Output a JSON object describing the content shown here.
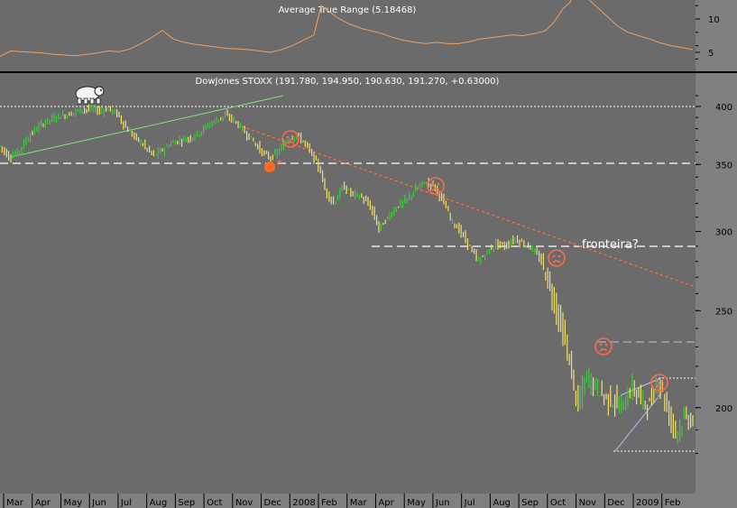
{
  "chart_data": [
    {
      "type": "line",
      "title": "Average True Range (5.18468)",
      "yticks": [
        5,
        10
      ],
      "series": [
        {
          "x": [
            0,
            12,
            24,
            36,
            48,
            60,
            72,
            84,
            96,
            108,
            120,
            132,
            144,
            156,
            168,
            180,
            192,
            204,
            216,
            228,
            240,
            252,
            264,
            276,
            288,
            300,
            312,
            324,
            336,
            348,
            356,
            364,
            376,
            388,
            400,
            412,
            424,
            436,
            448,
            460,
            472,
            484,
            496,
            508,
            520,
            532,
            544,
            556,
            568,
            580,
            592,
            604,
            614,
            624,
            632,
            640,
            648,
            660,
            672,
            684,
            696,
            708,
            720,
            732,
            744,
            756,
            768
          ],
          "y": [
            4.4,
            5.2,
            5.1,
            5.0,
            4.9,
            4.7,
            4.6,
            4.5,
            4.7,
            4.9,
            5.2,
            5.1,
            5.5,
            6.3,
            7.2,
            8.3,
            7.0,
            6.5,
            6.2,
            6.0,
            5.8,
            5.6,
            5.5,
            5.4,
            5.2,
            5.0,
            5.4,
            6.0,
            6.8,
            7.6,
            12.0,
            11.2,
            10.0,
            9.2,
            8.6,
            8.2,
            7.8,
            7.2,
            6.8,
            6.5,
            6.3,
            6.5,
            6.3,
            6.3,
            6.6,
            7.0,
            7.2,
            7.4,
            7.6,
            7.5,
            7.8,
            8.2,
            9.5,
            11.5,
            12.5,
            15.5,
            13.5,
            12.0,
            10.5,
            9.0,
            8.0,
            7.5,
            7.0,
            6.4,
            6.0,
            5.7,
            5.4
          ]
        }
      ]
    },
    {
      "type": "line",
      "title": "DowJones STOXX (191.780, 194.950, 190.630, 191.270, +0.63000)",
      "yticks": [
        200,
        250,
        300,
        350,
        400
      ],
      "xticks": [
        "Mar",
        "Apr",
        "May",
        "Jun",
        "Jul",
        "Aug",
        "Sep",
        "Oct",
        "Nov",
        "Dec",
        "2008",
        "Feb",
        "Mar",
        "Apr",
        "May",
        "Jun",
        "Jul",
        "Aug",
        "Sep",
        "Oct",
        "Nov",
        "Dec",
        "2009",
        "Feb"
      ],
      "annotations": [
        "fronteira?"
      ],
      "series": [
        {
          "x": [
            0,
            10,
            20,
            30,
            40,
            50,
            60,
            70,
            80,
            90,
            100,
            110,
            120,
            130,
            140,
            150,
            160,
            170,
            180,
            190,
            200,
            210,
            220,
            230,
            240,
            250,
            260,
            270,
            280,
            290,
            300,
            310,
            320,
            330,
            340,
            350,
            355,
            360,
            370,
            380,
            390,
            400,
            410,
            420,
            430,
            440,
            450,
            460,
            470,
            480,
            490,
            500,
            510,
            520,
            530,
            540,
            550,
            560,
            570,
            580,
            590,
            600,
            610,
            620,
            630,
            640,
            650,
            660,
            670,
            680,
            690,
            700,
            710,
            720,
            730,
            740,
            750,
            760,
            768
          ],
          "y": [
            365,
            356,
            360,
            372,
            380,
            386,
            390,
            392,
            394,
            397,
            398,
            396,
            398,
            393,
            380,
            372,
            365,
            357,
            362,
            368,
            370,
            372,
            376,
            383,
            388,
            392,
            387,
            378,
            370,
            360,
            355,
            362,
            372,
            374,
            365,
            352,
            345,
            330,
            320,
            333,
            327,
            325,
            318,
            302,
            310,
            318,
            322,
            330,
            336,
            334,
            323,
            308,
            300,
            290,
            280,
            286,
            292,
            290,
            295,
            292,
            288,
            280,
            263,
            245,
            225,
            200,
            215,
            210,
            205,
            203,
            200,
            210,
            204,
            201,
            214,
            198,
            189,
            196,
            194
          ]
        }
      ]
    }
  ]
}
